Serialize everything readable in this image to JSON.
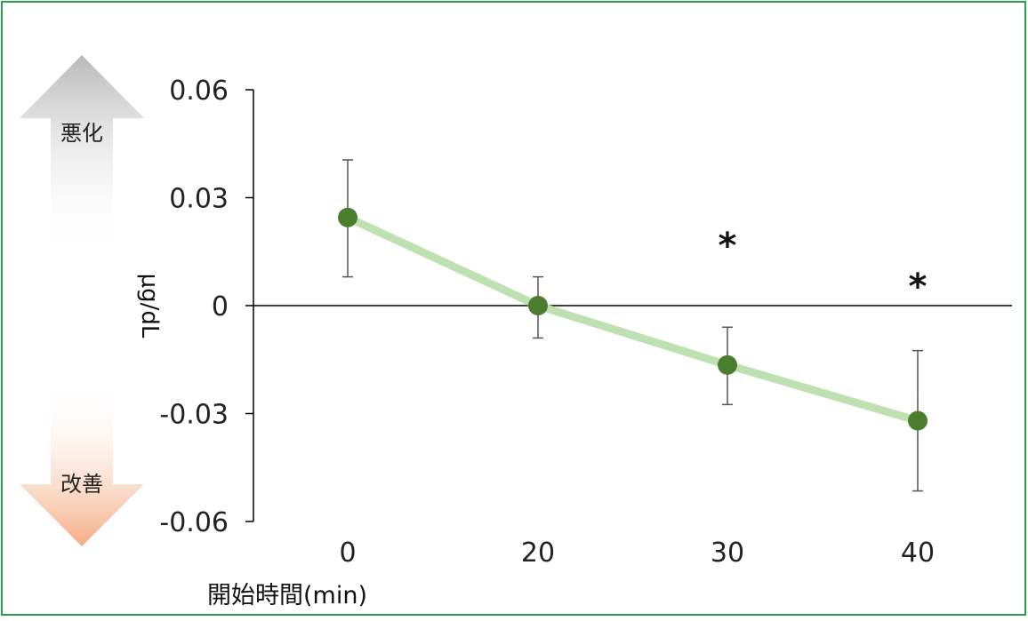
{
  "colors": {
    "frame": "#2e9e4e",
    "line": "#bfe0b0",
    "marker": "#4a7e2e",
    "error_bar": "#555555",
    "axis": "#000000",
    "text": "#222222",
    "arrow_up": "#bdbdbd",
    "arrow_down": "#f4b08a"
  },
  "indicators": {
    "worse_label": "悪化",
    "better_label": "改善"
  },
  "chart_data": {
    "type": "line",
    "title": "",
    "xlabel": "開始時間(min)",
    "ylabel": "μg/dL",
    "categories": [
      "0",
      "20",
      "30",
      "40"
    ],
    "x_tick_labels": [
      "0",
      "20",
      "30",
      "40"
    ],
    "y_ticks": [
      0.06,
      0.03,
      0,
      -0.03,
      -0.06
    ],
    "y_tick_labels": [
      "0.06",
      "0.03",
      "0",
      "-0.03",
      "-0.06"
    ],
    "ylim": [
      -0.06,
      0.06
    ],
    "grid": false,
    "series": [
      {
        "values": [
          0.0245,
          0.0,
          -0.0165,
          -0.032
        ],
        "error_upper": [
          0.0405,
          0.008,
          -0.006,
          -0.0125
        ],
        "error_lower": [
          0.008,
          -0.009,
          -0.0275,
          -0.0515
        ]
      }
    ],
    "significance": [
      {
        "category": "30",
        "label": "*"
      },
      {
        "category": "40",
        "label": "*"
      }
    ]
  }
}
